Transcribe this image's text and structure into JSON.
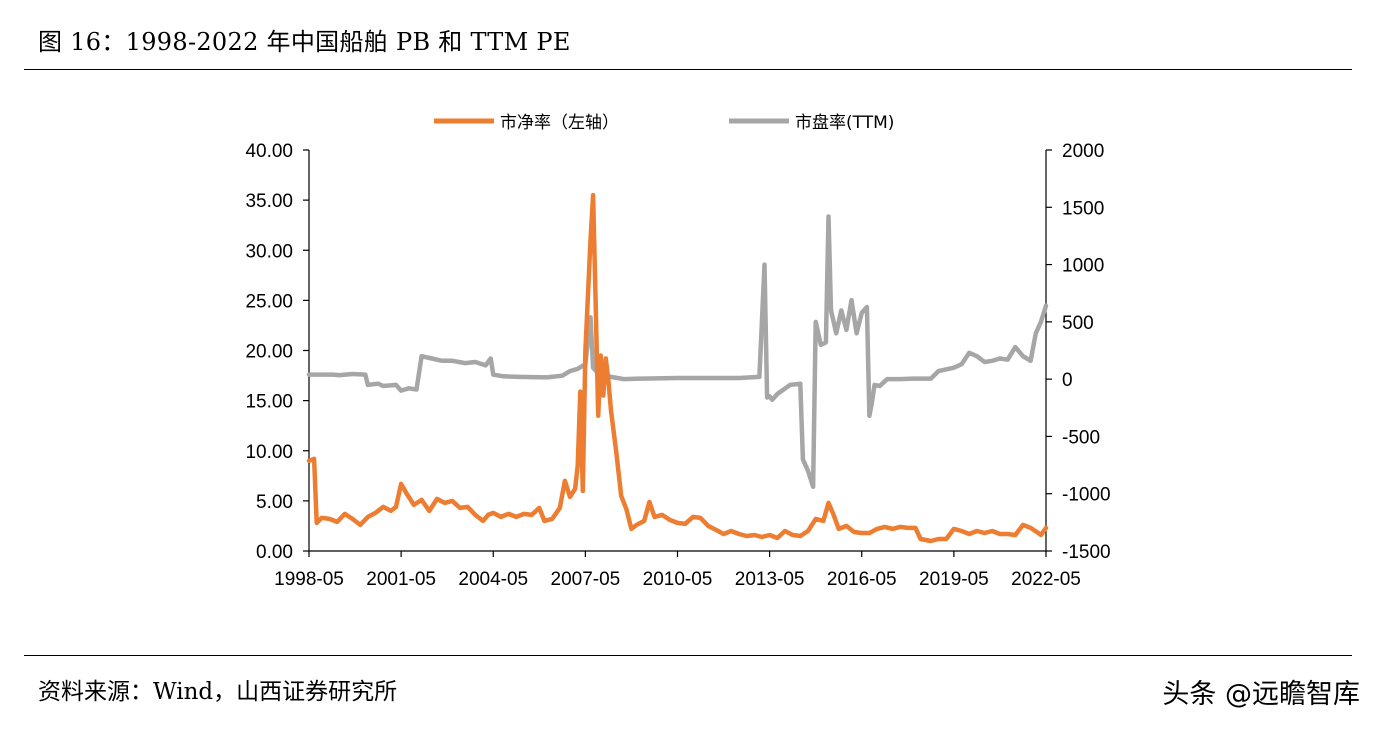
{
  "header": {
    "title": "图 16：1998-2022 年中国船舶 PB 和 TTM PE"
  },
  "footer": {
    "source": "资料来源：Wind，山西证券研究所",
    "watermark": "头条 @远瞻智库"
  },
  "chart_data": {
    "type": "line",
    "x_tick_labels": [
      "1998-05",
      "2001-05",
      "2004-05",
      "2007-05",
      "2010-05",
      "2013-05",
      "2016-05",
      "2019-05",
      "2022-05"
    ],
    "y_left": {
      "ylim": [
        0,
        40
      ],
      "tick_labels": [
        "0.00",
        "5.00",
        "10.00",
        "15.00",
        "20.00",
        "25.00",
        "30.00",
        "35.00",
        "40.00"
      ]
    },
    "y_right": {
      "ylim": [
        -1500,
        2000
      ],
      "tick_labels": [
        "-1500",
        "-1000",
        "-500",
        "0",
        "500",
        "1000",
        "1500",
        "2000"
      ]
    },
    "legend_position": "top-center",
    "series": [
      {
        "name": "市净率（左轴）",
        "axis": "left",
        "color": "#ED7D31",
        "points": [
          [
            "1998-05",
            9.0
          ],
          [
            "1998-07",
            9.2
          ],
          [
            "1998-08",
            2.8
          ],
          [
            "1998-10",
            3.3
          ],
          [
            "1999-01",
            3.2
          ],
          [
            "1999-04",
            2.9
          ],
          [
            "1999-07",
            3.7
          ],
          [
            "1999-10",
            3.2
          ],
          [
            "2000-01",
            2.6
          ],
          [
            "2000-04",
            3.4
          ],
          [
            "2000-07",
            3.8
          ],
          [
            "2000-10",
            4.4
          ],
          [
            "2001-01",
            4.0
          ],
          [
            "2001-03",
            4.4
          ],
          [
            "2001-05",
            6.7
          ],
          [
            "2001-07",
            5.8
          ],
          [
            "2001-10",
            4.6
          ],
          [
            "2002-01",
            5.1
          ],
          [
            "2002-04",
            4.0
          ],
          [
            "2002-07",
            5.2
          ],
          [
            "2002-10",
            4.8
          ],
          [
            "2003-01",
            5.0
          ],
          [
            "2003-04",
            4.3
          ],
          [
            "2003-07",
            4.4
          ],
          [
            "2003-10",
            3.6
          ],
          [
            "2004-01",
            3.0
          ],
          [
            "2004-03",
            3.6
          ],
          [
            "2004-05",
            3.8
          ],
          [
            "2004-08",
            3.4
          ],
          [
            "2004-11",
            3.7
          ],
          [
            "2005-02",
            3.4
          ],
          [
            "2005-05",
            3.7
          ],
          [
            "2005-08",
            3.6
          ],
          [
            "2005-11",
            4.3
          ],
          [
            "2006-01",
            3.0
          ],
          [
            "2006-04",
            3.2
          ],
          [
            "2006-07",
            4.3
          ],
          [
            "2006-09",
            7.0
          ],
          [
            "2006-11",
            5.4
          ],
          [
            "2007-01",
            6.2
          ],
          [
            "2007-02",
            8.5
          ],
          [
            "2007-03",
            15.9
          ],
          [
            "2007-04",
            6.0
          ],
          [
            "2007-05",
            20.0
          ],
          [
            "2007-07",
            31.0
          ],
          [
            "2007-08",
            35.5
          ],
          [
            "2007-09",
            25.0
          ],
          [
            "2007-10",
            13.5
          ],
          [
            "2007-11",
            19.5
          ],
          [
            "2007-12",
            15.5
          ],
          [
            "2008-01",
            19.2
          ],
          [
            "2008-02",
            17.0
          ],
          [
            "2008-03",
            14.0
          ],
          [
            "2008-05",
            10.0
          ],
          [
            "2008-07",
            5.5
          ],
          [
            "2008-09",
            4.2
          ],
          [
            "2008-11",
            2.2
          ],
          [
            "2009-01",
            2.6
          ],
          [
            "2009-04",
            3.0
          ],
          [
            "2009-06",
            4.9
          ],
          [
            "2009-08",
            3.4
          ],
          [
            "2009-11",
            3.6
          ],
          [
            "2010-02",
            3.1
          ],
          [
            "2010-05",
            2.8
          ],
          [
            "2010-08",
            2.7
          ],
          [
            "2010-11",
            3.4
          ],
          [
            "2011-02",
            3.3
          ],
          [
            "2011-05",
            2.5
          ],
          [
            "2011-08",
            2.1
          ],
          [
            "2011-11",
            1.7
          ],
          [
            "2012-02",
            2.0
          ],
          [
            "2012-05",
            1.7
          ],
          [
            "2012-08",
            1.5
          ],
          [
            "2012-11",
            1.6
          ],
          [
            "2013-02",
            1.4
          ],
          [
            "2013-05",
            1.6
          ],
          [
            "2013-08",
            1.3
          ],
          [
            "2013-11",
            2.0
          ],
          [
            "2014-02",
            1.6
          ],
          [
            "2014-05",
            1.5
          ],
          [
            "2014-08",
            2.0
          ],
          [
            "2014-11",
            3.2
          ],
          [
            "2015-02",
            3.0
          ],
          [
            "2015-04",
            4.8
          ],
          [
            "2015-06",
            3.6
          ],
          [
            "2015-08",
            2.2
          ],
          [
            "2015-11",
            2.5
          ],
          [
            "2016-02",
            1.9
          ],
          [
            "2016-05",
            1.8
          ],
          [
            "2016-08",
            1.8
          ],
          [
            "2016-11",
            2.2
          ],
          [
            "2017-02",
            2.4
          ],
          [
            "2017-05",
            2.2
          ],
          [
            "2017-08",
            2.4
          ],
          [
            "2017-11",
            2.3
          ],
          [
            "2018-02",
            2.3
          ],
          [
            "2018-04",
            1.2
          ],
          [
            "2018-08",
            1.0
          ],
          [
            "2018-11",
            1.2
          ],
          [
            "2019-02",
            1.2
          ],
          [
            "2019-05",
            2.2
          ],
          [
            "2019-08",
            2.0
          ],
          [
            "2019-11",
            1.7
          ],
          [
            "2020-02",
            2.0
          ],
          [
            "2020-05",
            1.8
          ],
          [
            "2020-08",
            2.0
          ],
          [
            "2020-11",
            1.7
          ],
          [
            "2021-02",
            1.7
          ],
          [
            "2021-05",
            1.6
          ],
          [
            "2021-08",
            2.6
          ],
          [
            "2021-11",
            2.3
          ],
          [
            "2022-02",
            1.8
          ],
          [
            "2022-03",
            1.6
          ],
          [
            "2022-05",
            2.3
          ]
        ]
      },
      {
        "name": "市盘率(TTM)",
        "axis": "right",
        "color": "#A6A6A6",
        "points": [
          [
            "1998-05",
            40
          ],
          [
            "1999-02",
            40
          ],
          [
            "1999-05",
            35
          ],
          [
            "1999-10",
            45
          ],
          [
            "2000-03",
            40
          ],
          [
            "2000-04",
            -50
          ],
          [
            "2000-08",
            -40
          ],
          [
            "2000-10",
            -60
          ],
          [
            "2001-03",
            -50
          ],
          [
            "2001-05",
            -100
          ],
          [
            "2001-08",
            -80
          ],
          [
            "2001-11",
            -90
          ],
          [
            "2002-01",
            200
          ],
          [
            "2002-05",
            180
          ],
          [
            "2002-09",
            160
          ],
          [
            "2003-01",
            160
          ],
          [
            "2003-06",
            140
          ],
          [
            "2003-10",
            150
          ],
          [
            "2004-02",
            120
          ],
          [
            "2004-04",
            180
          ],
          [
            "2004-05",
            40
          ],
          [
            "2004-09",
            25
          ],
          [
            "2005-03",
            20
          ],
          [
            "2006-02",
            15
          ],
          [
            "2006-08",
            30
          ],
          [
            "2006-11",
            70
          ],
          [
            "2007-02",
            90
          ],
          [
            "2007-05",
            130
          ],
          [
            "2007-07",
            540
          ],
          [
            "2007-08",
            100
          ],
          [
            "2007-10",
            50
          ],
          [
            "2008-03",
            20
          ],
          [
            "2008-08",
            0
          ],
          [
            "2009-03",
            5
          ],
          [
            "2010-05",
            10
          ],
          [
            "2012-05",
            10
          ],
          [
            "2013-01",
            20
          ],
          [
            "2013-03",
            1000
          ],
          [
            "2013-04",
            -160
          ],
          [
            "2013-05",
            -150
          ],
          [
            "2013-06",
            -180
          ],
          [
            "2013-08",
            -130
          ],
          [
            "2014-01",
            -50
          ],
          [
            "2014-05",
            -40
          ],
          [
            "2014-06",
            -700
          ],
          [
            "2014-08",
            -800
          ],
          [
            "2014-10",
            -940
          ],
          [
            "2014-11",
            500
          ],
          [
            "2015-01",
            300
          ],
          [
            "2015-03",
            320
          ],
          [
            "2015-04",
            1420
          ],
          [
            "2015-05",
            600
          ],
          [
            "2015-07",
            400
          ],
          [
            "2015-09",
            600
          ],
          [
            "2015-11",
            430
          ],
          [
            "2016-01",
            690
          ],
          [
            "2016-03",
            400
          ],
          [
            "2016-05",
            580
          ],
          [
            "2016-07",
            630
          ],
          [
            "2016-08",
            -320
          ],
          [
            "2016-09",
            -200
          ],
          [
            "2016-10",
            -50
          ],
          [
            "2016-12",
            -60
          ],
          [
            "2017-03",
            0
          ],
          [
            "2017-08",
            0
          ],
          [
            "2018-01",
            5
          ],
          [
            "2018-08",
            5
          ],
          [
            "2018-11",
            70
          ],
          [
            "2019-05",
            100
          ],
          [
            "2019-08",
            130
          ],
          [
            "2019-11",
            230
          ],
          [
            "2020-02",
            200
          ],
          [
            "2020-05",
            150
          ],
          [
            "2020-08",
            160
          ],
          [
            "2020-11",
            180
          ],
          [
            "2021-02",
            170
          ],
          [
            "2021-05",
            280
          ],
          [
            "2021-08",
            200
          ],
          [
            "2021-11",
            160
          ],
          [
            "2022-01",
            400
          ],
          [
            "2022-03",
            500
          ],
          [
            "2022-05",
            640
          ]
        ]
      }
    ]
  }
}
